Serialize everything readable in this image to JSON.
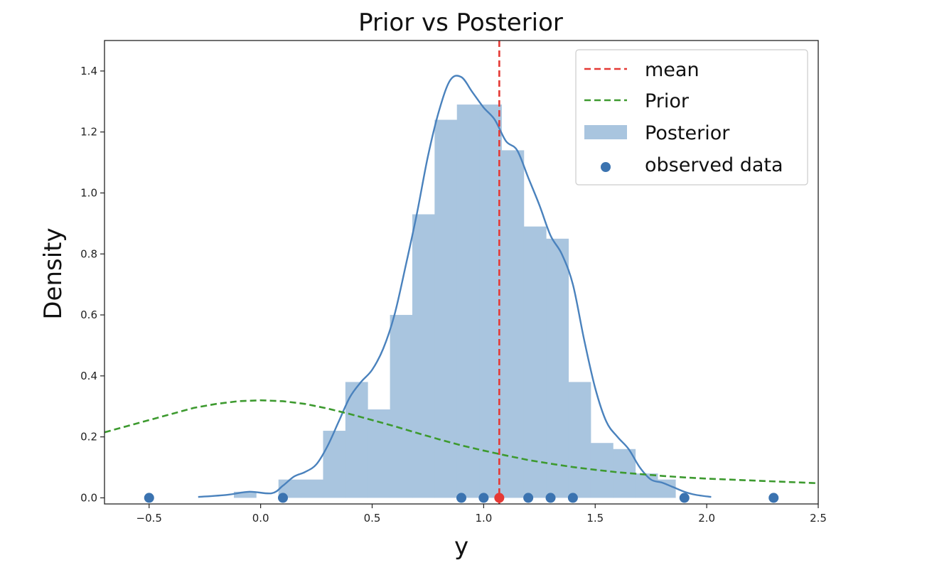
{
  "chart_data": {
    "type": "histogram",
    "title": "Prior vs Posterior",
    "xlabel": "y",
    "ylabel": "Density",
    "xlim": [
      -0.7,
      2.5
    ],
    "ylim": [
      -0.02,
      1.5
    ],
    "xticks": [
      -0.5,
      0.0,
      0.5,
      1.0,
      1.5,
      2.0,
      2.5
    ],
    "xtick_labels": [
      "−0.5",
      "0.0",
      "0.5",
      "1.0",
      "1.5",
      "2.0",
      "2.5"
    ],
    "yticks": [
      0.0,
      0.2,
      0.4,
      0.6,
      0.8,
      1.0,
      1.2,
      1.4
    ],
    "ytick_labels": [
      "0.0",
      "0.2",
      "0.4",
      "0.6",
      "0.8",
      "1.0",
      "1.2",
      "1.4"
    ],
    "grid": false,
    "legend_position": "top-right",
    "legend": [
      "mean",
      "Prior",
      "Posterior",
      "observed data"
    ],
    "colors": {
      "mean": "#e53935",
      "prior": "#3d9a2f",
      "posterior_fill": "#a9c5df",
      "kde": "#4a82bd",
      "observed": "#3b73b0",
      "mean_point": "#e53935"
    },
    "mean": 1.07,
    "posterior_histogram": {
      "bin_edges": [
        -0.12,
        -0.02,
        0.08,
        0.18,
        0.28,
        0.38,
        0.48,
        0.58,
        0.68,
        0.78,
        0.88,
        0.98,
        1.08,
        1.18,
        1.28,
        1.38,
        1.48,
        1.58,
        1.68,
        1.78,
        1.86
      ],
      "heights": [
        0.02,
        0.0,
        0.06,
        0.06,
        0.22,
        0.38,
        0.29,
        0.6,
        0.93,
        1.24,
        1.29,
        1.29,
        1.14,
        0.89,
        0.85,
        0.38,
        0.18,
        0.16,
        0.08,
        0.06
      ]
    },
    "posterior_kde": {
      "x": [
        -0.28,
        -0.15,
        -0.05,
        0.05,
        0.1,
        0.15,
        0.2,
        0.25,
        0.3,
        0.35,
        0.4,
        0.45,
        0.5,
        0.55,
        0.6,
        0.65,
        0.7,
        0.75,
        0.8,
        0.85,
        0.9,
        0.95,
        1.0,
        1.05,
        1.1,
        1.15,
        1.2,
        1.25,
        1.3,
        1.35,
        1.4,
        1.45,
        1.5,
        1.55,
        1.6,
        1.65,
        1.7,
        1.75,
        1.8,
        1.85,
        1.9,
        1.95,
        2.02
      ],
      "y": [
        0.003,
        0.01,
        0.02,
        0.015,
        0.04,
        0.07,
        0.085,
        0.11,
        0.17,
        0.25,
        0.33,
        0.38,
        0.42,
        0.49,
        0.6,
        0.76,
        0.93,
        1.12,
        1.27,
        1.37,
        1.38,
        1.33,
        1.28,
        1.24,
        1.17,
        1.14,
        1.05,
        0.96,
        0.86,
        0.8,
        0.7,
        0.52,
        0.36,
        0.25,
        0.2,
        0.16,
        0.1,
        0.06,
        0.05,
        0.035,
        0.02,
        0.01,
        0.003
      ]
    },
    "prior": {
      "x": [
        -0.7,
        -0.6,
        -0.5,
        -0.4,
        -0.3,
        -0.2,
        -0.1,
        0.0,
        0.1,
        0.2,
        0.3,
        0.4,
        0.5,
        0.6,
        0.7,
        0.8,
        0.9,
        1.0,
        1.1,
        1.2,
        1.3,
        1.4,
        1.5,
        1.6,
        1.7,
        1.8,
        1.9,
        2.0,
        2.1,
        2.2,
        2.3,
        2.4,
        2.5
      ],
      "y": [
        0.215,
        0.235,
        0.255,
        0.275,
        0.295,
        0.308,
        0.317,
        0.32,
        0.317,
        0.308,
        0.293,
        0.275,
        0.255,
        0.235,
        0.213,
        0.192,
        0.172,
        0.155,
        0.139,
        0.124,
        0.112,
        0.101,
        0.092,
        0.084,
        0.078,
        0.072,
        0.067,
        0.063,
        0.06,
        0.057,
        0.054,
        0.051,
        0.048
      ]
    },
    "observed_data": [
      -0.5,
      0.1,
      0.9,
      1.0,
      1.2,
      1.3,
      1.4,
      1.9,
      2.3
    ],
    "mean_point": 1.07
  }
}
